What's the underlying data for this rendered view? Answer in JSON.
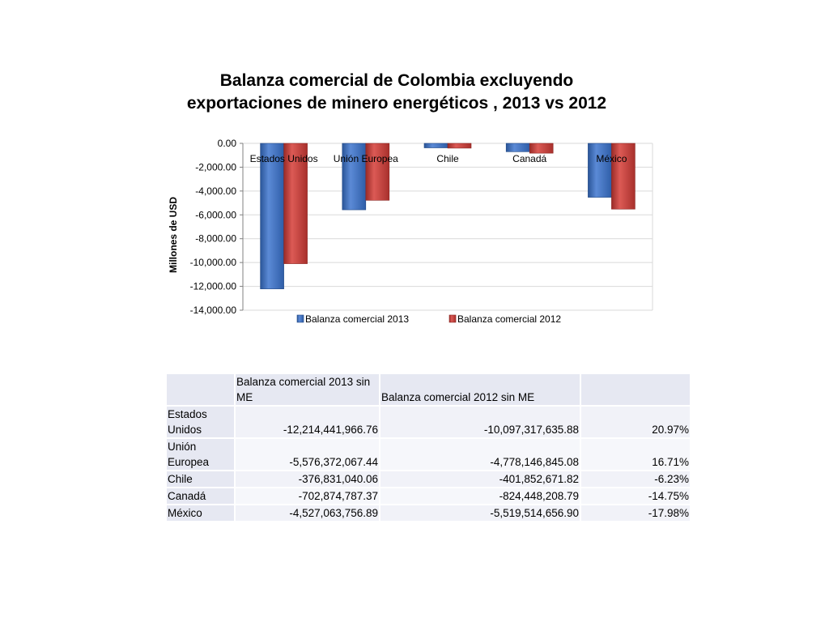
{
  "chart_data": {
    "type": "bar",
    "title_lines": [
      "Balanza comercial de Colombia excluyendo",
      "exportaciones de minero energéticos , 2013 vs 2012"
    ],
    "ylabel": "Millones de USD",
    "xlabel": "",
    "categories": [
      "Estados Unidos",
      "Unión Europea",
      "Chile",
      "Canadá",
      "México"
    ],
    "series": [
      {
        "name": "Balanza comercial 2013",
        "color": "#3f6fc0",
        "values": [
          -12214.44,
          -5576.37,
          -376.83,
          -702.87,
          -4527.06
        ]
      },
      {
        "name": "Balanza comercial 2012",
        "color": "#c0403c",
        "values": [
          -10097.32,
          -4778.15,
          -401.85,
          -824.45,
          -5519.51
        ]
      }
    ],
    "ylim": [
      -14000,
      0
    ],
    "yticks": [
      0,
      -2000,
      -4000,
      -6000,
      -8000,
      -10000,
      -12000,
      -14000
    ],
    "ytick_labels": [
      "0.00",
      "-2,000.00",
      "-4,000.00",
      "-6,000.00",
      "-8,000.00",
      "-10,000.00",
      "-12,000.00",
      "-14,000.00"
    ],
    "grid": true,
    "legend_position": "bottom"
  },
  "table": {
    "headers": [
      "",
      "Balanza comercial 2013 sin ME",
      "Balanza comercial 2012 sin ME",
      ""
    ],
    "rows": [
      {
        "name": "Estados Unidos",
        "v2013": "-12,214,441,966.76",
        "v2012": "-10,097,317,635.88",
        "change": "20.97%"
      },
      {
        "name": "Unión Europea",
        "v2013": "-5,576,372,067.44",
        "v2012": "-4,778,146,845.08",
        "change": "16.71%"
      },
      {
        "name": "Chile",
        "v2013": "-376,831,040.06",
        "v2012": "-401,852,671.82",
        "change": "-6.23%"
      },
      {
        "name": "Canadá",
        "v2013": "-702,874,787.37",
        "v2012": "-824,448,208.79",
        "change": "-14.75%"
      },
      {
        "name": "México",
        "v2013": "-4,527,063,756.89",
        "v2012": "-5,519,514,656.90",
        "change": "-17.98%"
      }
    ]
  }
}
